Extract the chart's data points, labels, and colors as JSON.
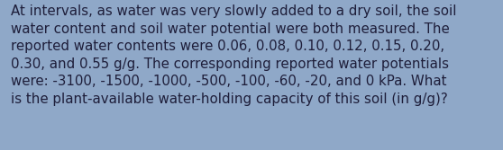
{
  "lines": [
    "At intervals, as water was very slowly added to a dry soil, the soil",
    "water content and soil water potential were both measured. The",
    "reported water contents were 0.06, 0.08, 0.10, 0.12, 0.15, 0.20,",
    "0.30, and 0.55 g/g. The corresponding reported water potentials",
    "were: -3100, -1500, -1000, -500, -100, -60, -20, and 0 kPa. What",
    "is the plant-available water-holding capacity of this soil (in g/g)?"
  ],
  "background_color": "#8fa8c8",
  "text_color": "#1e1e3a",
  "font_size": 10.8,
  "fig_width": 5.58,
  "fig_height": 1.67,
  "dpi": 100
}
